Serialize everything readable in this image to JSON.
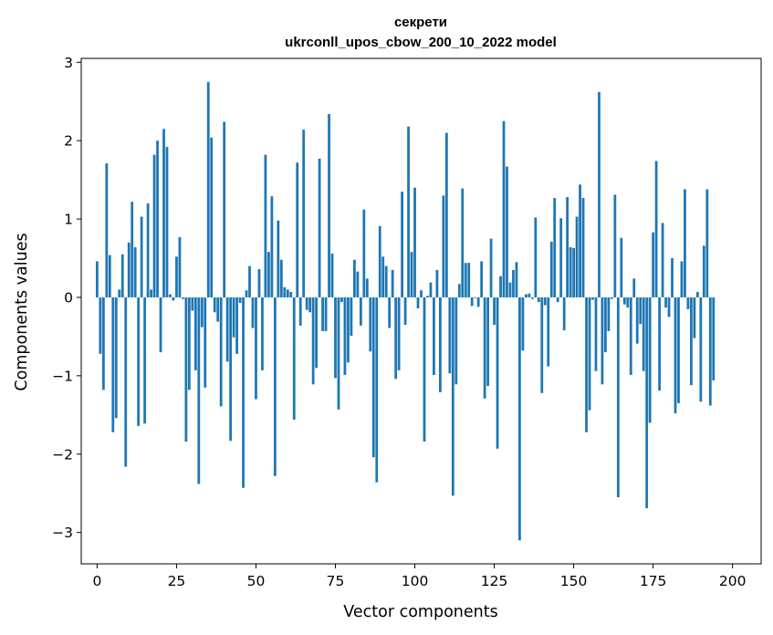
{
  "chart_data": {
    "type": "bar",
    "title_line1": "секрети",
    "title_line2": "ukrconll_upos_cbow_200_10_2022 model",
    "xlabel": "Vector components",
    "ylabel": "Components values",
    "xlim": [
      -5,
      209
    ],
    "ylim": [
      -3.4,
      3.05
    ],
    "xticks": [
      0,
      25,
      50,
      75,
      100,
      125,
      150,
      175,
      200
    ],
    "yticks": [
      -3,
      -2,
      -1,
      0,
      1,
      2,
      3
    ],
    "ytick_labels": [
      "−3",
      "−2",
      "−1",
      "0",
      "1",
      "2",
      "3"
    ],
    "color": "#1f77b4",
    "grid": false,
    "legend": "none",
    "values": [
      0.46,
      -0.72,
      -1.18,
      1.71,
      0.54,
      -1.72,
      -1.54,
      0.1,
      0.55,
      -2.16,
      0.7,
      1.22,
      0.64,
      -1.64,
      1.03,
      -1.61,
      1.2,
      0.1,
      1.82,
      2.0,
      -0.7,
      2.15,
      1.92,
      0.04,
      -0.04,
      0.52,
      0.77,
      -0.02,
      -1.84,
      -1.18,
      -0.17,
      -0.93,
      -2.38,
      -0.38,
      -1.15,
      2.75,
      2.04,
      -0.19,
      -0.31,
      -1.39,
      2.24,
      -0.82,
      -1.83,
      -0.51,
      -0.72,
      -0.07,
      -2.43,
      0.09,
      0.4,
      -0.39,
      -1.3,
      0.36,
      -0.93,
      1.82,
      0.58,
      1.29,
      -2.28,
      0.98,
      0.48,
      0.13,
      0.1,
      0.07,
      -1.56,
      1.72,
      -0.36,
      2.14,
      -0.16,
      -0.19,
      -1.11,
      -0.9,
      1.77,
      -0.43,
      -0.43,
      2.34,
      0.56,
      -1.03,
      -1.43,
      -0.06,
      -0.99,
      -0.83,
      -0.49,
      0.48,
      0.33,
      -0.36,
      1.12,
      0.24,
      -0.69,
      -2.04,
      -2.36,
      0.91,
      0.52,
      0.4,
      -0.39,
      0.35,
      -1.04,
      -0.93,
      1.35,
      -0.35,
      2.18,
      0.58,
      1.4,
      -0.14,
      0.09,
      -1.84,
      0.02,
      0.19,
      -0.99,
      0.35,
      -1.21,
      1.3,
      2.1,
      -0.97,
      -2.53,
      -1.11,
      0.17,
      1.39,
      0.44,
      0.44,
      -0.11,
      -0.01,
      -0.12,
      0.46,
      -1.29,
      -1.13,
      0.75,
      -0.35,
      -1.93,
      0.27,
      2.25,
      1.67,
      0.19,
      0.35,
      0.45,
      -3.1,
      -0.68,
      0.04,
      0.05,
      -0.02,
      1.02,
      -0.06,
      -1.22,
      -0.1,
      -0.88,
      0.71,
      1.27,
      -0.06,
      1.01,
      -0.42,
      1.28,
      0.64,
      0.63,
      1.03,
      1.44,
      1.27,
      -1.72,
      -1.44,
      -0.03,
      -0.94,
      2.62,
      -1.11,
      -0.7,
      -0.43,
      -0.02,
      1.31,
      -2.55,
      0.76,
      -0.09,
      -0.13,
      -0.99,
      0.24,
      -0.59,
      -0.34,
      -0.94,
      -2.69,
      -1.6,
      0.83,
      1.74,
      -1.19,
      0.95,
      -0.13,
      -0.25,
      0.5,
      -1.48,
      -1.35,
      0.46,
      1.38,
      -0.15,
      -1.12,
      -0.52,
      0.07,
      -1.33,
      0.66,
      1.38,
      -1.38,
      -1.06
    ]
  }
}
